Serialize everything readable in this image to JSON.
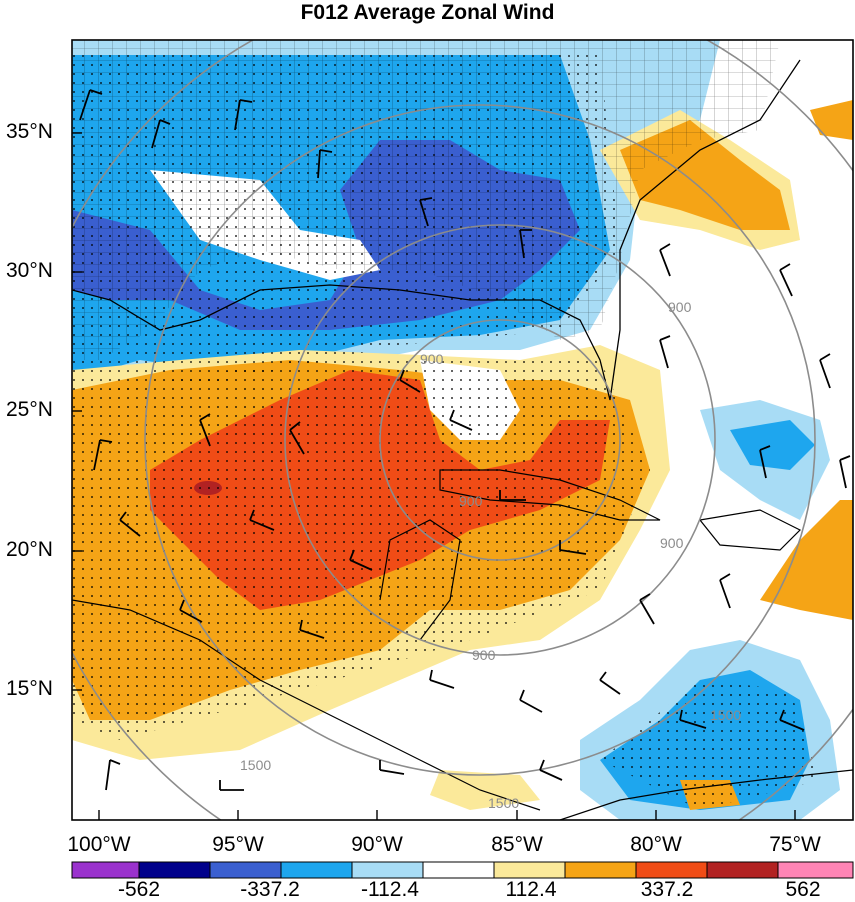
{
  "title": "F012 Average Zonal Wind",
  "latitude_labels": [
    "35°N",
    "30°N",
    "25°N",
    "20°N",
    "15°N"
  ],
  "longitude_labels": [
    "100°W",
    "95°W",
    "90°W",
    "85°W",
    "80°W",
    "75°W"
  ],
  "contour_labels": [
    "900",
    "900",
    "900",
    "900",
    "1500",
    "1500",
    "1500",
    "900"
  ],
  "colorbar": {
    "labels": [
      "-562",
      "-337.2",
      "-112.4",
      "112.4",
      "337.2",
      "562"
    ],
    "colors": [
      "#9a32cd",
      "#00008b",
      "#3a5fd0",
      "#1ea6ee",
      "#a8dcf5",
      "#ffffff",
      "#fbe99a",
      "#f5a416",
      "#f04c16",
      "#b22222",
      "#ff85b5"
    ]
  },
  "colors": {
    "deep_blue": "#3a5fd0",
    "mid_blue": "#1ea6ee",
    "light_blue": "#a8dcf5",
    "yellow": "#fbe99a",
    "orange": "#f5a416",
    "red_orange": "#f04c16",
    "dark_red": "#b22222"
  }
}
